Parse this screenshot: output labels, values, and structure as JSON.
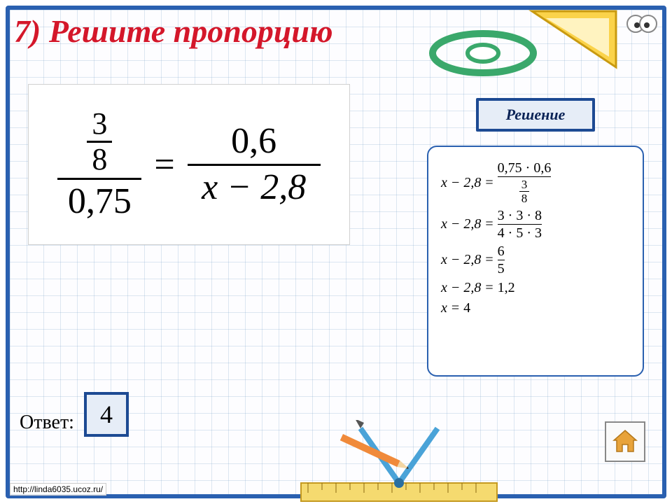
{
  "title": {
    "text": "7) Решите пропорцию",
    "color": "#d4172a"
  },
  "frame_color": "#2a60b0",
  "equation": {
    "left": {
      "numerator_top": "3",
      "numerator_bottom": "8",
      "denominator": "0,75"
    },
    "right": {
      "numerator": "0,6",
      "denominator": "x − 2,8"
    }
  },
  "solution_button": {
    "label": "Решение",
    "border_color": "#1d4a93",
    "text_color": "#0b2356"
  },
  "solution_box": {
    "border_color": "#2a60b0",
    "steps": [
      {
        "lhs": "x − 2,8",
        "rhs_type": "frac_over_frac",
        "num": "0,75 · 0,6",
        "den_top": "3",
        "den_bot": "8"
      },
      {
        "lhs": "x − 2,8",
        "rhs_type": "frac",
        "num": "3 · 3 · 8",
        "den": "4 · 5 · 3"
      },
      {
        "lhs": "x − 2,8",
        "rhs_type": "frac",
        "num": "6",
        "den": "5"
      },
      {
        "lhs": "x − 2,8",
        "rhs_type": "plain",
        "val": "1,2"
      },
      {
        "lhs": "x",
        "rhs_type": "plain",
        "val": "4"
      }
    ]
  },
  "answer": {
    "label": "Ответ:",
    "value": "4",
    "border_color": "#1d4a93"
  },
  "home_icon_color": "#e8a33a",
  "url": "http://linda6035.ucoz.ru/"
}
